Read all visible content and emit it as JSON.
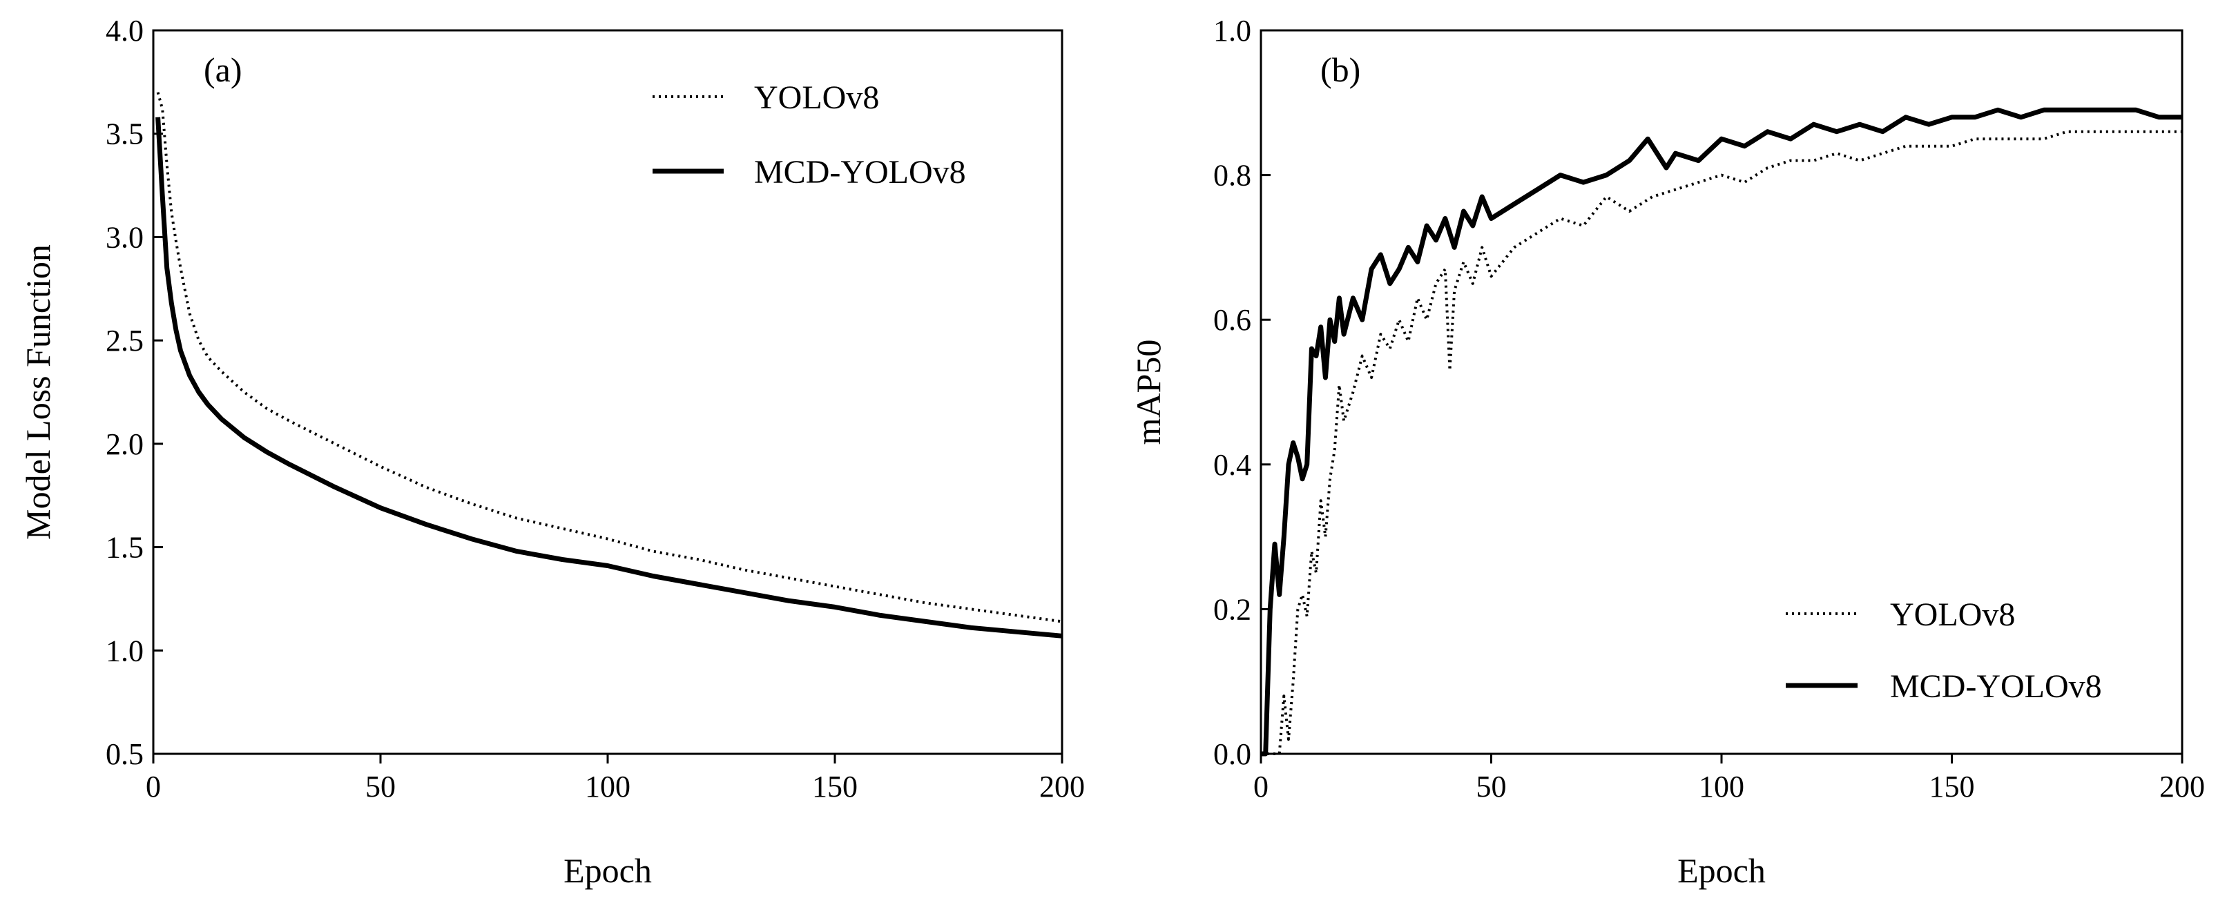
{
  "chart_data": [
    {
      "panel_label": "(a)",
      "type": "line",
      "xlabel": "Epoch",
      "ylabel": "Model Loss Function",
      "xlim": [
        0,
        200
      ],
      "ylim": [
        0.5,
        4.0
      ],
      "xticks": [
        "0",
        "50",
        "100",
        "150",
        "200"
      ],
      "yticks": [
        "0.5",
        "1.0",
        "1.5",
        "2.0",
        "2.5",
        "3.0",
        "3.5",
        "4.0"
      ],
      "legend_position": "top-right",
      "x": [
        1,
        2,
        3,
        4,
        5,
        6,
        8,
        10,
        12,
        15,
        20,
        25,
        30,
        40,
        50,
        60,
        70,
        80,
        90,
        100,
        110,
        120,
        130,
        140,
        150,
        160,
        170,
        180,
        190,
        200
      ],
      "series": [
        {
          "name": "YOLOv8",
          "style": "dotted",
          "values": [
            3.7,
            3.62,
            3.35,
            3.12,
            2.98,
            2.85,
            2.63,
            2.5,
            2.42,
            2.35,
            2.25,
            2.17,
            2.11,
            2.0,
            1.89,
            1.79,
            1.71,
            1.64,
            1.59,
            1.54,
            1.48,
            1.44,
            1.39,
            1.35,
            1.31,
            1.27,
            1.23,
            1.2,
            1.17,
            1.14
          ]
        },
        {
          "name": "MCD-YOLOv8",
          "style": "solid",
          "values": [
            3.58,
            3.2,
            2.85,
            2.68,
            2.55,
            2.45,
            2.33,
            2.25,
            2.19,
            2.12,
            2.03,
            1.96,
            1.9,
            1.79,
            1.69,
            1.61,
            1.54,
            1.48,
            1.44,
            1.41,
            1.36,
            1.32,
            1.28,
            1.24,
            1.21,
            1.17,
            1.14,
            1.11,
            1.09,
            1.07
          ]
        }
      ]
    },
    {
      "panel_label": "(b)",
      "type": "line",
      "xlabel": "Epoch",
      "ylabel": "mAP50",
      "xlim": [
        0,
        200
      ],
      "ylim": [
        0.0,
        1.0
      ],
      "xticks": [
        "0",
        "50",
        "100",
        "150",
        "200"
      ],
      "yticks": [
        "0.0",
        "0.2",
        "0.4",
        "0.6",
        "0.8",
        "1.0"
      ],
      "legend_position": "bottom-right",
      "series": [
        {
          "name": "YOLOv8",
          "style": "dotted",
          "x": [
            0,
            3,
            4,
            5,
            6,
            7,
            8,
            9,
            10,
            11,
            12,
            13,
            14,
            15,
            16,
            17,
            18,
            20,
            22,
            24,
            26,
            28,
            30,
            32,
            34,
            36,
            38,
            40,
            41,
            42,
            44,
            46,
            48,
            50,
            55,
            60,
            65,
            70,
            75,
            80,
            85,
            90,
            95,
            100,
            105,
            110,
            115,
            120,
            125,
            130,
            135,
            140,
            145,
            150,
            155,
            160,
            165,
            170,
            175,
            180,
            185,
            190,
            195,
            200
          ],
          "values": [
            0.0,
            0.0,
            0.0,
            0.08,
            0.02,
            0.1,
            0.2,
            0.22,
            0.19,
            0.28,
            0.25,
            0.35,
            0.3,
            0.38,
            0.42,
            0.51,
            0.46,
            0.5,
            0.55,
            0.52,
            0.58,
            0.56,
            0.6,
            0.57,
            0.63,
            0.6,
            0.65,
            0.67,
            0.53,
            0.64,
            0.68,
            0.65,
            0.7,
            0.66,
            0.7,
            0.72,
            0.74,
            0.73,
            0.77,
            0.75,
            0.77,
            0.78,
            0.79,
            0.8,
            0.79,
            0.81,
            0.82,
            0.82,
            0.83,
            0.82,
            0.83,
            0.84,
            0.84,
            0.84,
            0.85,
            0.85,
            0.85,
            0.85,
            0.86,
            0.86,
            0.86,
            0.86,
            0.86,
            0.86
          ]
        },
        {
          "name": "MCD-YOLOv8",
          "style": "solid",
          "x": [
            0,
            1,
            2,
            3,
            4,
            5,
            6,
            7,
            8,
            9,
            10,
            11,
            12,
            13,
            14,
            15,
            16,
            17,
            18,
            20,
            22,
            24,
            26,
            28,
            30,
            32,
            34,
            36,
            38,
            40,
            42,
            44,
            46,
            48,
            50,
            55,
            60,
            65,
            70,
            75,
            80,
            84,
            88,
            90,
            95,
            100,
            105,
            110,
            115,
            120,
            125,
            130,
            135,
            140,
            145,
            150,
            155,
            160,
            165,
            170,
            175,
            180,
            185,
            190,
            195,
            200
          ],
          "values": [
            0.0,
            0.0,
            0.2,
            0.29,
            0.22,
            0.3,
            0.4,
            0.43,
            0.41,
            0.38,
            0.4,
            0.56,
            0.55,
            0.59,
            0.52,
            0.6,
            0.57,
            0.63,
            0.58,
            0.63,
            0.6,
            0.67,
            0.69,
            0.65,
            0.67,
            0.7,
            0.68,
            0.73,
            0.71,
            0.74,
            0.7,
            0.75,
            0.73,
            0.77,
            0.74,
            0.76,
            0.78,
            0.8,
            0.79,
            0.8,
            0.82,
            0.85,
            0.81,
            0.83,
            0.82,
            0.85,
            0.84,
            0.86,
            0.85,
            0.87,
            0.86,
            0.87,
            0.86,
            0.88,
            0.87,
            0.88,
            0.88,
            0.89,
            0.88,
            0.89,
            0.89,
            0.89,
            0.89,
            0.89,
            0.88,
            0.88
          ]
        }
      ]
    }
  ]
}
